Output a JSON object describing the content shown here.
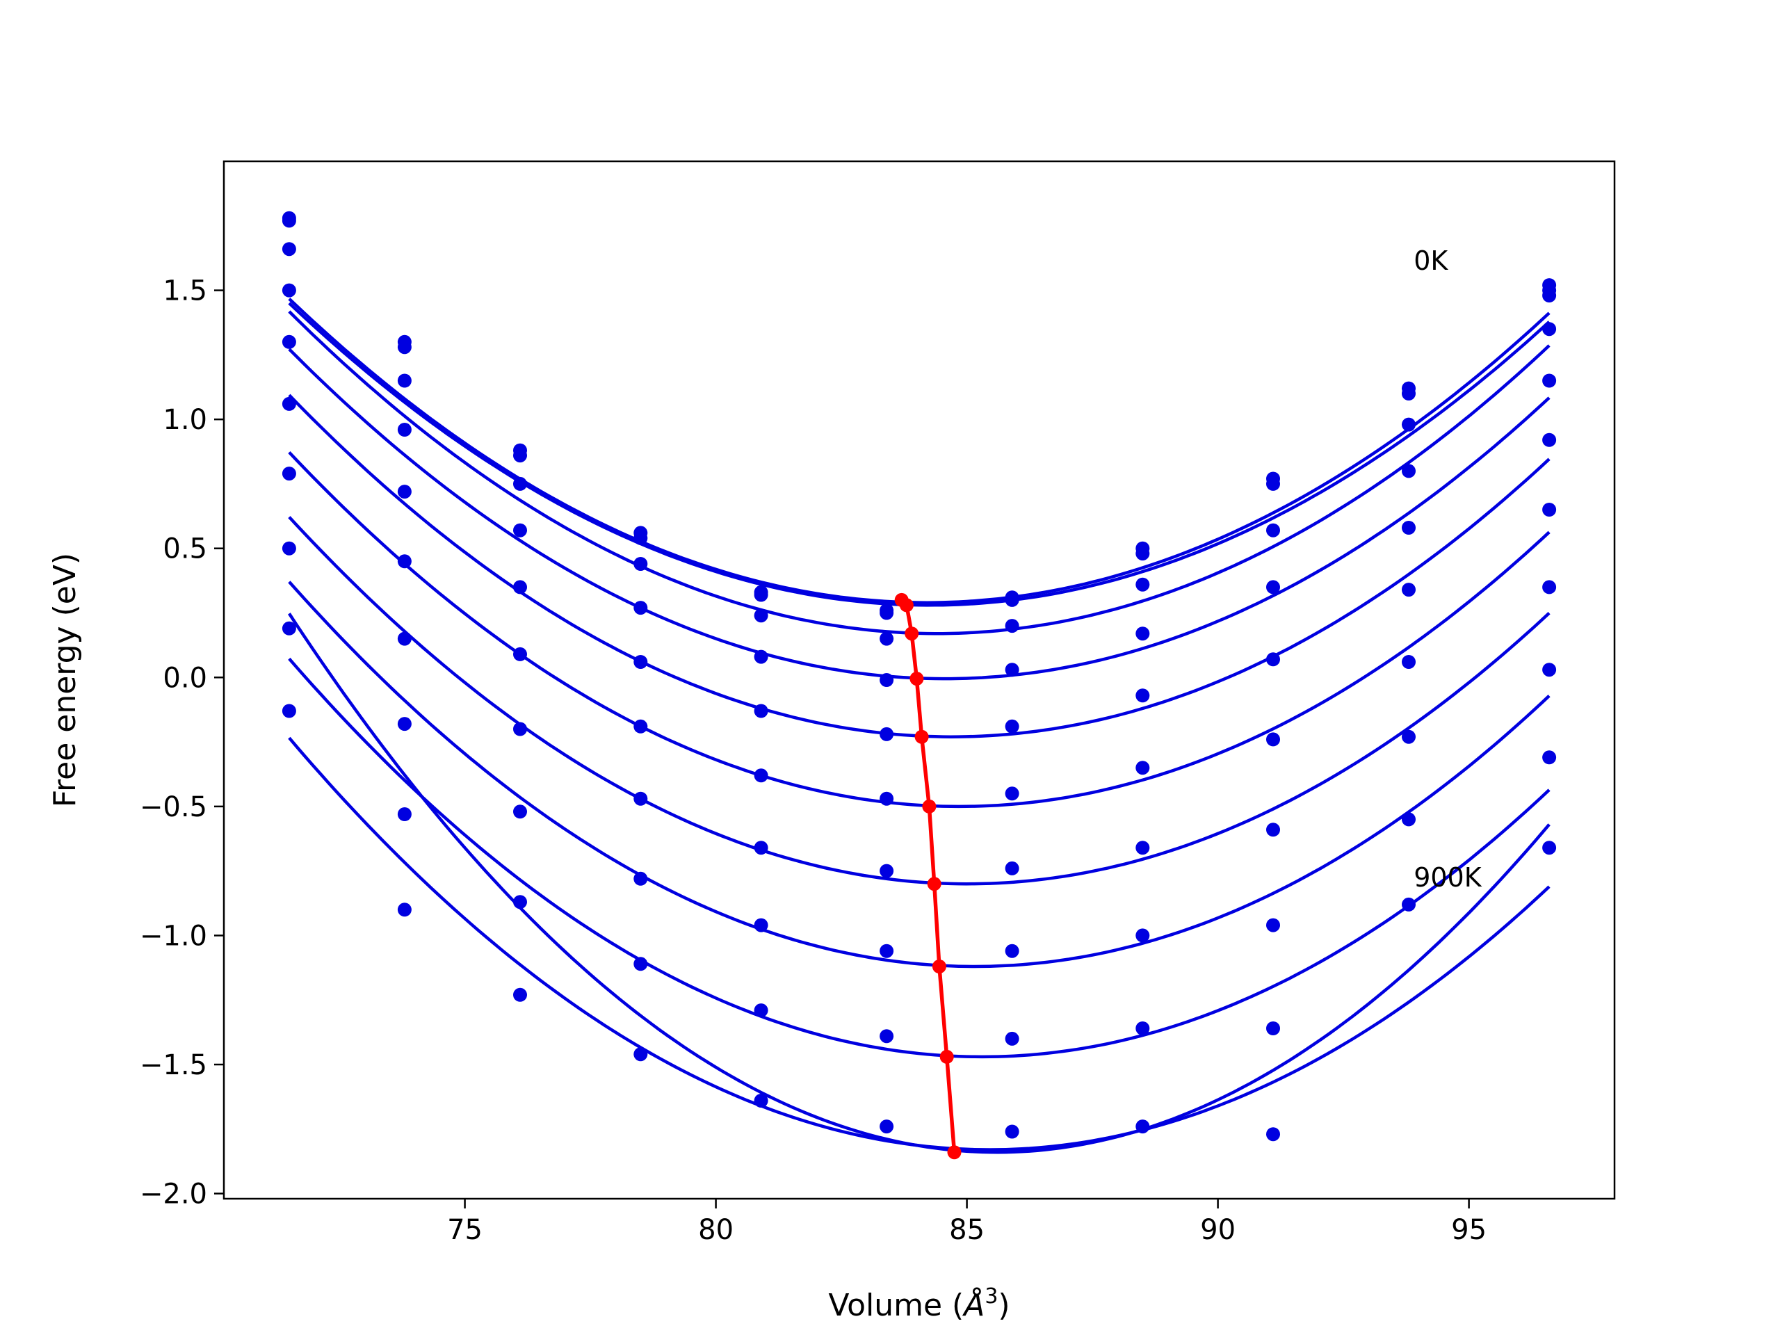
{
  "chart_data": {
    "type": "scatter",
    "title": "",
    "xlabel": "Volume (",
    "xlabel_unit": "Å",
    "xlabel_sup": "3",
    "xlabel_close": ")",
    "ylabel": "Free energy (eV)",
    "xlim": [
      70.2,
      97.9
    ],
    "ylim": [
      -2.02,
      2.0
    ],
    "xticks": [
      75,
      80,
      85,
      90,
      95
    ],
    "xtick_labels": [
      "75",
      "80",
      "85",
      "90",
      "95"
    ],
    "yticks": [
      1.5,
      1.0,
      0.5,
      0.0,
      -0.5,
      -1.0,
      -1.5,
      -2.0
    ],
    "ytick_labels": [
      "1.5",
      "1.0",
      "0.5",
      "0.0",
      "−0.5",
      "−1.0",
      "−1.5",
      "−2.0"
    ],
    "grid": false,
    "annotations": [
      {
        "text": "0K",
        "x": 93.9,
        "y": 1.58
      },
      {
        "text": "900K",
        "x": 93.9,
        "y": -0.81
      }
    ],
    "volumes": [
      71.5,
      73.8,
      76.1,
      78.5,
      80.9,
      83.4,
      85.9,
      88.5,
      91.1,
      93.8,
      96.6
    ],
    "series_color": "#0000e0",
    "min_line_color": "#ff0000",
    "series": [
      {
        "points": [
          1.78,
          1.3,
          0.88,
          0.56,
          0.33,
          0.26,
          0.31,
          0.5,
          0.77,
          1.12,
          1.52
        ],
        "fit": {
          "x0": 84.2,
          "fmin": 0.29,
          "a": 0.0073
        }
      },
      {
        "points": [
          1.77,
          1.28,
          0.86,
          0.54,
          0.32,
          0.25,
          0.3,
          0.48,
          0.75,
          1.1,
          1.5
        ],
        "fit": {
          "x0": 84.25,
          "fmin": 0.28,
          "a": 0.0072
        }
      },
      {
        "points": [
          1.66,
          1.15,
          0.75,
          0.44,
          0.24,
          0.15,
          0.2,
          0.36,
          0.57,
          0.98,
          1.48
        ],
        "fit": {
          "x0": 84.4,
          "fmin": 0.17,
          "a": 0.0075
        }
      },
      {
        "points": [
          1.5,
          0.96,
          0.57,
          0.27,
          0.08,
          -0.01,
          0.03,
          0.17,
          0.35,
          0.8,
          1.35
        ],
        "fit": {
          "x0": 84.55,
          "fmin": -0.005,
          "a": 0.0075
        }
      },
      {
        "points": [
          1.3,
          0.72,
          0.35,
          0.06,
          -0.13,
          -0.22,
          -0.19,
          -0.07,
          0.07,
          0.58,
          1.15
        ],
        "fit": {
          "x0": 84.7,
          "fmin": -0.23,
          "a": 0.0076
        }
      },
      {
        "points": [
          1.06,
          0.45,
          0.09,
          -0.19,
          -0.38,
          -0.47,
          -0.45,
          -0.35,
          -0.24,
          0.34,
          0.92
        ],
        "fit": {
          "x0": 84.85,
          "fmin": -0.5,
          "a": 0.0077
        }
      },
      {
        "points": [
          0.79,
          0.15,
          -0.2,
          -0.47,
          -0.66,
          -0.75,
          -0.74,
          -0.66,
          -0.59,
          0.06,
          0.65
        ],
        "fit": {
          "x0": 85.0,
          "fmin": -0.8,
          "a": 0.0078
        }
      },
      {
        "points": [
          0.5,
          -0.18,
          -0.52,
          -0.78,
          -0.96,
          -1.06,
          -1.06,
          -1.0,
          -0.96,
          -0.23,
          0.35
        ],
        "fit": {
          "x0": 85.15,
          "fmin": -1.12,
          "a": 0.008
        }
      },
      {
        "points": [
          0.19,
          -0.53,
          -0.87,
          -1.11,
          -1.29,
          -1.39,
          -1.4,
          -1.36,
          -1.36,
          -0.55,
          0.03
        ],
        "fit": {
          "x0": 85.3,
          "fmin": -1.47,
          "a": 0.0081
        }
      },
      {
        "points": [
          -0.13,
          -0.9,
          -1.23,
          -1.46,
          -1.64,
          -1.74,
          -1.76,
          -1.74,
          -1.77,
          -0.88,
          -0.31
        ],
        "fit": {
          "x0": 85.45,
          "fmin": -1.83,
          "a": 0.0082
        }
      },
      {
        "points": [
          null,
          null,
          null,
          null,
          null,
          null,
          null,
          null,
          null,
          null,
          -0.66
        ],
        "fit": {
          "x0": 85.6,
          "fmin": -1.84,
          "a": 0.0105
        }
      }
    ],
    "minima": {
      "x": [
        83.7,
        83.8,
        83.9,
        84.0,
        84.1,
        84.25,
        84.35,
        84.45,
        84.6,
        84.75
      ],
      "y": [
        0.3,
        0.28,
        0.17,
        -0.005,
        -0.23,
        -0.5,
        -0.8,
        -1.12,
        -1.47,
        -1.84
      ]
    }
  }
}
